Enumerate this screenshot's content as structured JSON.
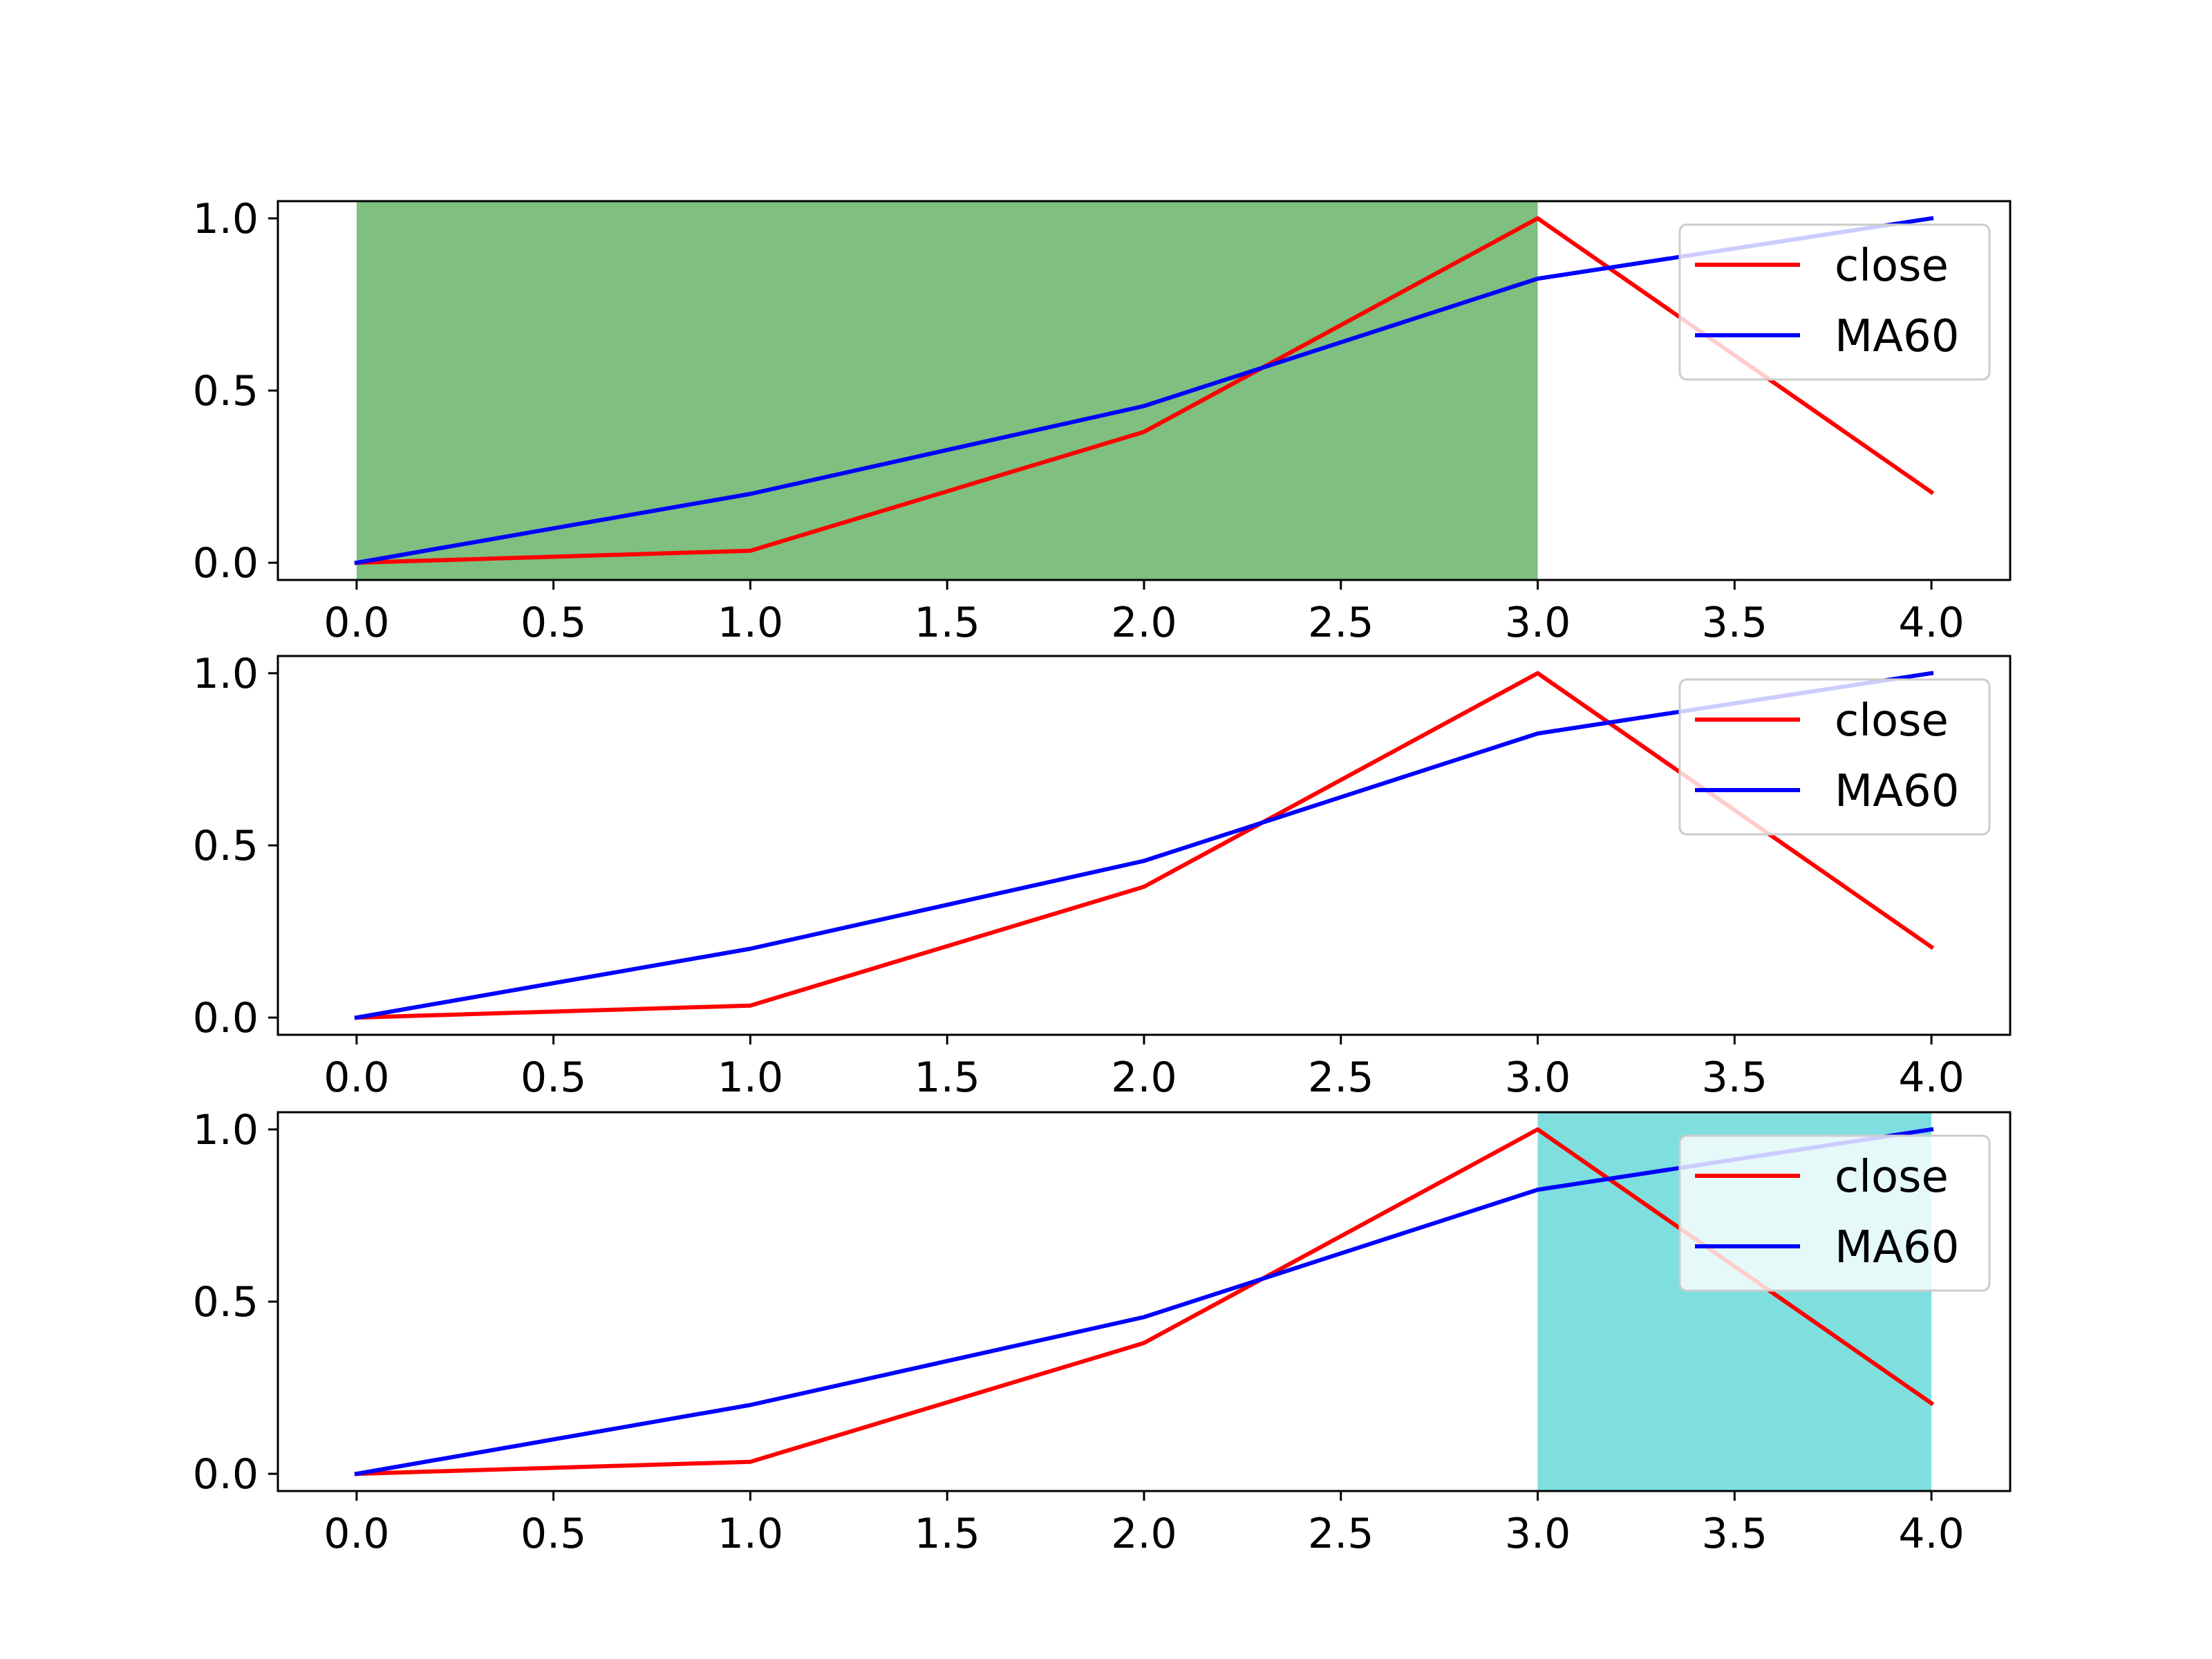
{
  "chart_data": [
    {
      "type": "line",
      "x": [
        0,
        1,
        2,
        3,
        4
      ],
      "series": [
        {
          "name": "close",
          "color": "#ff0000",
          "values": [
            0.0,
            0.035,
            0.38,
            1.0,
            0.205
          ]
        },
        {
          "name": "MA60",
          "color": "#0000ff",
          "values": [
            0.0,
            0.2,
            0.455,
            0.825,
            1.0
          ]
        }
      ],
      "shaded_span": {
        "x_start": 0,
        "x_end": 3,
        "color": "#7fbf7f"
      },
      "xlim": [
        -0.2,
        4.2
      ],
      "ylim": [
        -0.05,
        1.05
      ],
      "x_ticks": [
        "0.0",
        "0.5",
        "1.0",
        "1.5",
        "2.0",
        "2.5",
        "3.0",
        "3.5",
        "4.0"
      ],
      "y_ticks": [
        "0.0",
        "0.5",
        "1.0"
      ],
      "legend_position": "top-right",
      "grid": false
    },
    {
      "type": "line",
      "x": [
        0,
        1,
        2,
        3,
        4
      ],
      "series": [
        {
          "name": "close",
          "color": "#ff0000",
          "values": [
            0.0,
            0.035,
            0.38,
            1.0,
            0.205
          ]
        },
        {
          "name": "MA60",
          "color": "#0000ff",
          "values": [
            0.0,
            0.2,
            0.455,
            0.825,
            1.0
          ]
        }
      ],
      "shaded_span": null,
      "xlim": [
        -0.2,
        4.2
      ],
      "ylim": [
        -0.05,
        1.05
      ],
      "x_ticks": [
        "0.0",
        "0.5",
        "1.0",
        "1.5",
        "2.0",
        "2.5",
        "3.0",
        "3.5",
        "4.0"
      ],
      "y_ticks": [
        "0.0",
        "0.5",
        "1.0"
      ],
      "legend_position": "top-right",
      "grid": false
    },
    {
      "type": "line",
      "x": [
        0,
        1,
        2,
        3,
        4
      ],
      "series": [
        {
          "name": "close",
          "color": "#ff0000",
          "values": [
            0.0,
            0.035,
            0.38,
            1.0,
            0.205
          ]
        },
        {
          "name": "MA60",
          "color": "#0000ff",
          "values": [
            0.0,
            0.2,
            0.455,
            0.825,
            1.0
          ]
        }
      ],
      "shaded_span": {
        "x_start": 3,
        "x_end": 4,
        "color": "#7fdfdf"
      },
      "xlim": [
        -0.2,
        4.2
      ],
      "ylim": [
        -0.05,
        1.05
      ],
      "x_ticks": [
        "0.0",
        "0.5",
        "1.0",
        "1.5",
        "2.0",
        "2.5",
        "3.0",
        "3.5",
        "4.0"
      ],
      "y_ticks": [
        "0.0",
        "0.5",
        "1.0"
      ],
      "legend_position": "top-right",
      "grid": false
    }
  ]
}
